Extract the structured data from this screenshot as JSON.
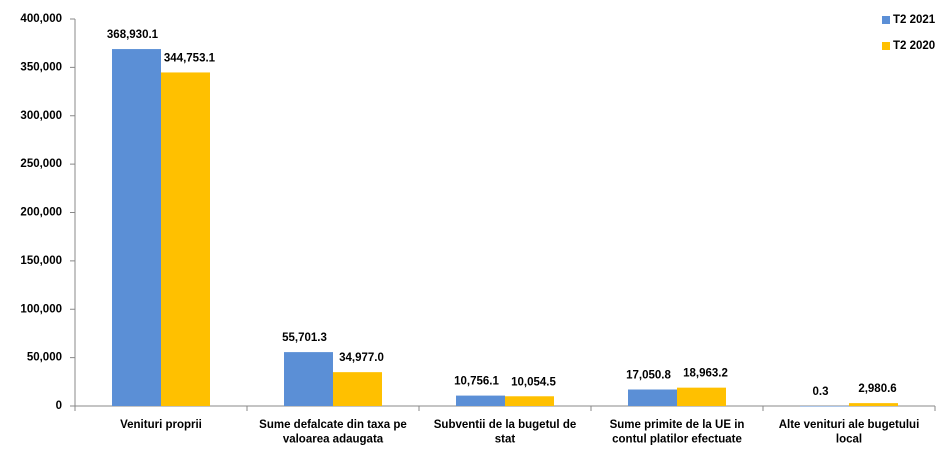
{
  "chart_data": {
    "type": "bar",
    "categories": [
      "Venituri proprii",
      "Sume defalcate din taxa pe valoarea adaugata",
      "Subventii de la bugetul de stat",
      "Sume primite de la UE in contul platilor efectuate",
      "Alte venituri ale bugetului local"
    ],
    "series": [
      {
        "name": "T2 2021",
        "color": "#5b8fd6",
        "values": [
          368930.1,
          55701.3,
          10756.1,
          17050.8,
          0.3
        ],
        "value_labels": [
          "368,930.1",
          "55,701.3",
          "10,756.1",
          "17,050.8",
          "0.3"
        ]
      },
      {
        "name": "T2 2020",
        "color": "#ffc000",
        "values": [
          344753.1,
          34977.0,
          10054.5,
          18963.2,
          2980.6
        ],
        "value_labels": [
          "344,753.1",
          "34,977.0",
          "10,054.5",
          "18,963.2",
          "2,980.6"
        ]
      }
    ],
    "ylim": [
      0,
      400000
    ],
    "yticks": [
      0,
      {
        "value": 50000,
        "label": "50,000"
      },
      {
        "value": 100000,
        "label": "100,000"
      },
      {
        "value": 150000,
        "label": "150,000"
      },
      {
        "value": 200000,
        "label": "200,000"
      },
      {
        "value": 250000,
        "label": "250,000"
      },
      {
        "value": 300000,
        "label": "300,000"
      },
      {
        "value": 350000,
        "label": "350,000"
      },
      {
        "value": 400000,
        "label": "400,000"
      }
    ],
    "legend": "top-right",
    "grid": false
  }
}
